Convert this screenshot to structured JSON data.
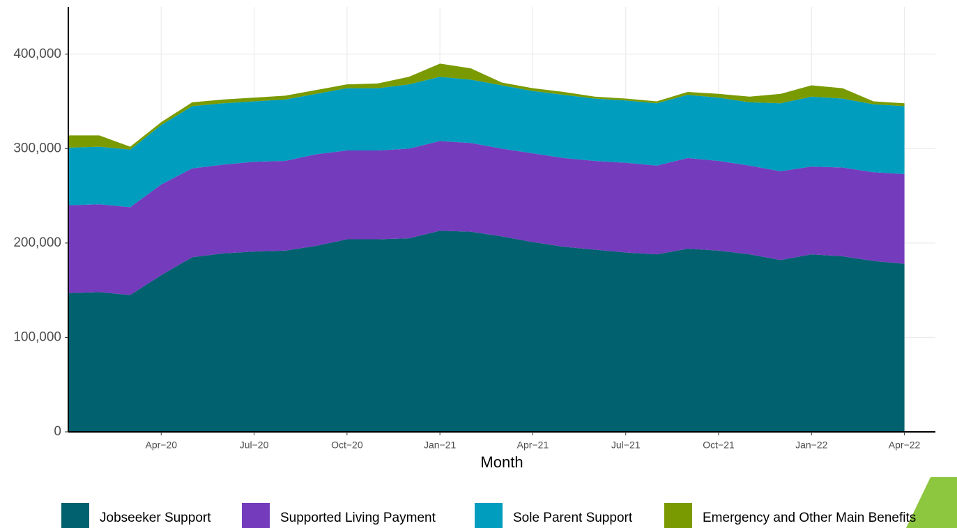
{
  "chart_data": {
    "type": "stacked_area",
    "x_label": "Month",
    "x": [
      "2020-01",
      "2020-02",
      "2020-03",
      "2020-04",
      "2020-05",
      "2020-06",
      "2020-07",
      "2020-08",
      "2020-09",
      "2020-10",
      "2020-11",
      "2020-12",
      "2021-01",
      "2021-02",
      "2021-03",
      "2021-04",
      "2021-05",
      "2021-06",
      "2021-07",
      "2021-08",
      "2021-09",
      "2021-10",
      "2021-11",
      "2021-12",
      "2022-01",
      "2022-02",
      "2022-03",
      "2022-04"
    ],
    "xlim": [
      "2020-01",
      "2022-05"
    ],
    "xticks": [
      {
        "value": "2020-04",
        "label": "Apr−20"
      },
      {
        "value": "2020-07",
        "label": "Jul−20"
      },
      {
        "value": "2020-10",
        "label": "Oct−20"
      },
      {
        "value": "2021-01",
        "label": "Jan−21"
      },
      {
        "value": "2021-04",
        "label": "Apr−21"
      },
      {
        "value": "2021-07",
        "label": "Jul−21"
      },
      {
        "value": "2021-10",
        "label": "Oct−21"
      },
      {
        "value": "2022-01",
        "label": "Jan−22"
      },
      {
        "value": "2022-04",
        "label": "Apr−22"
      }
    ],
    "ylim": [
      0,
      450000
    ],
    "yticks": [
      0,
      {
        "value": 100000,
        "label": "100,000"
      },
      {
        "value": 200000,
        "label": "200,000"
      },
      {
        "value": 300000,
        "label": "300,000"
      },
      {
        "value": 400000,
        "label": "400,000"
      }
    ],
    "grid": true,
    "legend": "bottom",
    "series": [
      {
        "name": "Jobseeker Support",
        "color": "#01616f",
        "values": [
          147000,
          148000,
          145000,
          166000,
          185000,
          189000,
          191000,
          192000,
          197000,
          204000,
          204000,
          205000,
          213000,
          212000,
          207000,
          201000,
          196000,
          193000,
          190000,
          188000,
          194000,
          192000,
          188000,
          182000,
          188000,
          186000,
          181000,
          178000
        ]
      },
      {
        "name": "Supported Living Payment",
        "color": "#753bbd",
        "values": [
          93000,
          93000,
          93000,
          96000,
          94000,
          94000,
          95000,
          95000,
          97000,
          94000,
          94000,
          95000,
          95000,
          94000,
          93000,
          94000,
          94000,
          94000,
          95000,
          94000,
          96000,
          95000,
          94000,
          94000,
          93000,
          94000,
          94000,
          95000
        ]
      },
      {
        "name": "Sole Parent Support",
        "color": "#009dbe",
        "values": [
          61000,
          61000,
          61000,
          63000,
          66000,
          65000,
          64000,
          65000,
          64000,
          66000,
          66000,
          68000,
          68000,
          67000,
          67000,
          66000,
          67000,
          66000,
          66000,
          66000,
          67000,
          67000,
          67000,
          72000,
          74000,
          73000,
          72000,
          72000
        ]
      },
      {
        "name": "Emergency and Other Main Benefits",
        "color": "#7a9a01",
        "values": [
          13000,
          12000,
          3000,
          3000,
          4000,
          4000,
          4000,
          4000,
          4000,
          4000,
          5000,
          8000,
          14000,
          12000,
          3000,
          3000,
          3000,
          2000,
          2000,
          2000,
          3000,
          4000,
          6000,
          10000,
          12000,
          11000,
          3000,
          3000
        ]
      }
    ]
  }
}
